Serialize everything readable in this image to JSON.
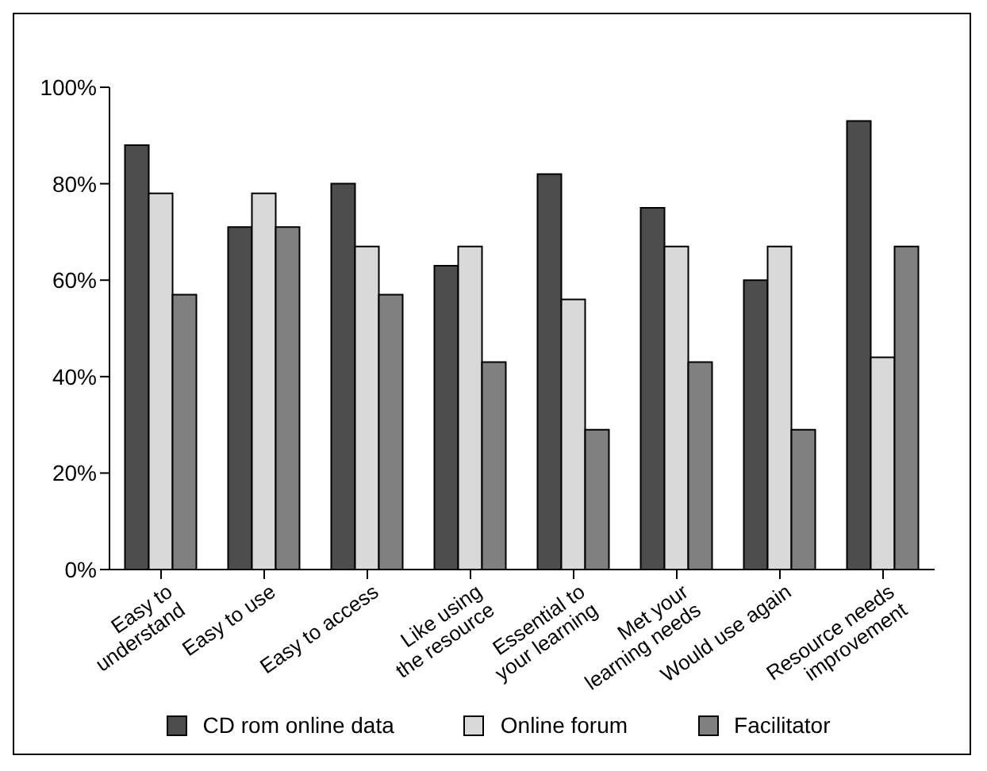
{
  "chart_data": {
    "type": "bar",
    "categories": [
      "Easy to\nunderstand",
      "Easy to use",
      "Easy to access",
      "Like using\nthe resource",
      "Essential to\nyour learning",
      "Met your\nlearning needs",
      "Would use again",
      "Resource needs\nimprovement"
    ],
    "series": [
      {
        "name": "CD rom online data",
        "color": "#4d4d4d",
        "values": [
          88,
          71,
          80,
          63,
          82,
          75,
          60,
          93
        ]
      },
      {
        "name": "Online forum",
        "color": "#d9d9d9",
        "values": [
          78,
          78,
          67,
          67,
          56,
          67,
          67,
          44
        ]
      },
      {
        "name": "Facilitator",
        "color": "#808080",
        "values": [
          57,
          71,
          57,
          43,
          29,
          43,
          29,
          67
        ]
      }
    ],
    "ylim": [
      0,
      100
    ],
    "yticks": [
      {
        "value": 0,
        "label": "0%"
      },
      {
        "value": 20,
        "label": "20%"
      },
      {
        "value": 40,
        "label": "40%"
      },
      {
        "value": 60,
        "label": "60%"
      },
      {
        "value": 80,
        "label": "80%"
      },
      {
        "value": 100,
        "label": "100%"
      }
    ],
    "grid": false,
    "legend": "bottom"
  }
}
